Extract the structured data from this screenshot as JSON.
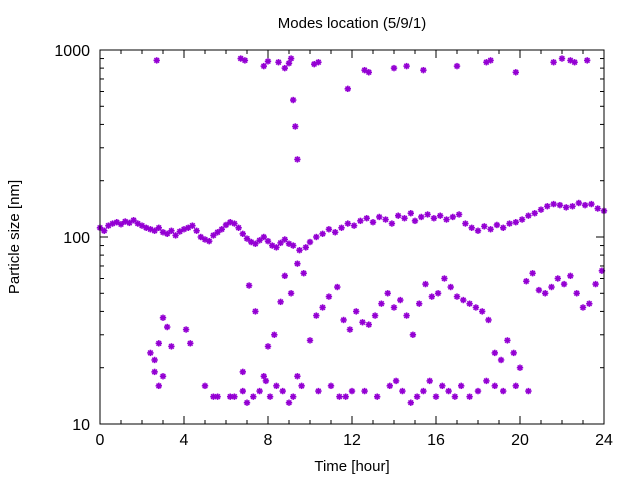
{
  "chart_data": {
    "type": "scatter",
    "title": "Modes location (5/9/1)",
    "xlabel": "Time [hour]",
    "ylabel": "Particle size [nm]",
    "xlim": [
      0,
      24
    ],
    "ylim": [
      10,
      1000
    ],
    "yscale": "log",
    "xticks": [
      0,
      4,
      8,
      12,
      16,
      20,
      24
    ],
    "xtick_labels": [
      "0",
      "4",
      "8",
      "12",
      "16",
      "20",
      "24"
    ],
    "yticks": [
      10,
      100,
      1000
    ],
    "ytick_labels": [
      "10",
      "100",
      "1000"
    ],
    "grid": false,
    "legend": "none",
    "marker": "star",
    "color": "#9400d3",
    "series": [
      {
        "x": [
          0.0,
          0.2,
          0.4,
          0.6,
          0.8,
          1.0,
          1.2,
          1.4,
          1.6,
          1.8,
          2.0,
          2.2,
          2.4,
          2.6,
          2.8,
          3.0,
          3.2,
          3.4,
          3.6,
          3.8,
          4.0,
          4.2,
          4.4,
          4.6,
          4.8,
          5.0,
          5.2,
          5.4,
          5.6,
          5.8,
          6.0,
          6.2,
          6.4,
          6.6,
          6.8,
          7.0,
          7.2,
          7.4,
          7.6,
          7.8,
          8.0,
          8.2,
          8.4,
          8.6,
          8.8,
          9.0,
          9.2,
          9.5,
          9.8,
          10.0,
          10.3,
          10.6,
          10.9,
          11.2,
          11.5,
          11.8,
          12.1,
          12.4,
          12.7,
          13.0,
          13.3,
          13.6,
          13.9,
          14.2,
          14.5,
          14.8,
          15.0,
          15.3,
          15.6,
          15.9,
          16.2,
          16.5,
          16.8,
          17.1,
          17.4,
          17.7,
          18.0,
          18.3,
          18.6,
          18.9,
          19.2,
          19.5,
          19.8,
          20.1,
          20.4,
          20.7,
          21.0,
          21.3,
          21.6,
          21.9,
          22.2,
          22.5,
          22.8,
          23.1,
          23.4,
          23.7,
          24.0
        ],
        "y": [
          112,
          108,
          115,
          118,
          120,
          117,
          121,
          119,
          123,
          118,
          115,
          112,
          110,
          108,
          112,
          106,
          104,
          108,
          102,
          107,
          110,
          112,
          115,
          108,
          100,
          97,
          95,
          102,
          106,
          110,
          116,
          120,
          118,
          112,
          104,
          98,
          94,
          92,
          96,
          100,
          95,
          90,
          88,
          93,
          97,
          92,
          90,
          85,
          88,
          94,
          100,
          104,
          110,
          106,
          112,
          118,
          115,
          122,
          126,
          120,
          128,
          124,
          118,
          130,
          126,
          134,
          122,
          128,
          132,
          126,
          130,
          124,
          128,
          132,
          118,
          112,
          108,
          114,
          110,
          116,
          112,
          118,
          120,
          124,
          130,
          134,
          140,
          146,
          150,
          148,
          144,
          146,
          152,
          148,
          150,
          142,
          138
        ]
      },
      {
        "x": [
          2.4,
          2.6,
          2.8,
          3.0,
          3.2,
          3.4,
          4.1,
          4.3,
          5.0,
          5.6,
          6.2,
          6.8,
          7.1,
          7.4,
          7.8,
          8.0,
          8.3,
          8.6,
          8.8,
          9.1,
          9.4,
          9.7,
          10.0,
          10.3,
          10.6,
          10.9,
          11.3,
          11.6,
          11.9,
          12.2,
          12.5,
          12.8,
          13.1,
          13.4,
          13.7,
          14.0,
          14.3,
          14.6,
          14.9,
          15.2,
          15.5,
          15.8,
          16.1,
          16.4,
          16.7,
          17.0,
          17.3,
          17.6,
          17.9,
          18.2,
          18.5,
          18.8,
          19.1,
          19.4,
          19.7,
          20.0,
          20.3,
          20.6,
          20.9,
          21.2,
          21.5,
          21.8,
          22.1,
          22.4,
          22.7,
          23.0,
          23.3,
          23.6,
          23.9
        ],
        "y": [
          24,
          19,
          27,
          37,
          33,
          26,
          32,
          27,
          16,
          14,
          14,
          19,
          55,
          40,
          18,
          26,
          30,
          45,
          62,
          50,
          72,
          64,
          28,
          38,
          42,
          48,
          54,
          36,
          32,
          40,
          35,
          34,
          38,
          44,
          50,
          42,
          46,
          38,
          30,
          44,
          56,
          48,
          50,
          60,
          54,
          48,
          46,
          44,
          42,
          40,
          36,
          24,
          22,
          28,
          24,
          20,
          58,
          64,
          52,
          50,
          54,
          60,
          56,
          62,
          50,
          42,
          44,
          56,
          66
        ]
      },
      {
        "x": [
          2.6,
          2.8,
          3.0,
          5.4,
          6.4,
          6.8,
          7.0,
          7.3,
          7.6,
          7.9,
          8.1,
          8.4,
          8.7,
          9.0,
          9.2,
          9.4,
          9.6,
          10.4,
          11.0,
          11.4,
          11.7,
          12.0,
          12.6,
          13.2,
          13.8,
          14.1,
          14.4,
          14.8,
          15.1,
          15.4,
          15.7,
          16.0,
          16.3,
          16.6,
          16.9,
          17.2,
          17.6,
          18.0,
          18.4,
          18.8,
          19.2,
          19.8,
          20.4
        ],
        "y": [
          22,
          16,
          18,
          14,
          14,
          15,
          13,
          14,
          15,
          17,
          14,
          16,
          15,
          13,
          14,
          18,
          16,
          15,
          16,
          14,
          14,
          15,
          15,
          14,
          16,
          17,
          15,
          13,
          14,
          15,
          17,
          14,
          16,
          15,
          14,
          16,
          14,
          15,
          17,
          16,
          15,
          16,
          15
        ]
      },
      {
        "x": [
          2.7,
          6.7,
          6.9,
          7.8,
          8.0,
          8.5,
          8.8,
          9.0,
          9.1,
          9.2,
          9.3,
          9.4,
          10.2,
          10.4,
          11.8,
          12.6,
          12.8,
          14.0,
          14.6,
          15.4,
          17.0,
          18.4,
          18.6,
          19.8,
          21.6,
          22.0,
          22.4,
          22.6,
          23.2
        ],
        "y": [
          880,
          900,
          880,
          820,
          870,
          860,
          800,
          850,
          900,
          540,
          390,
          260,
          840,
          860,
          620,
          780,
          760,
          800,
          820,
          780,
          820,
          860,
          880,
          760,
          860,
          900,
          880,
          860,
          880
        ]
      }
    ]
  }
}
